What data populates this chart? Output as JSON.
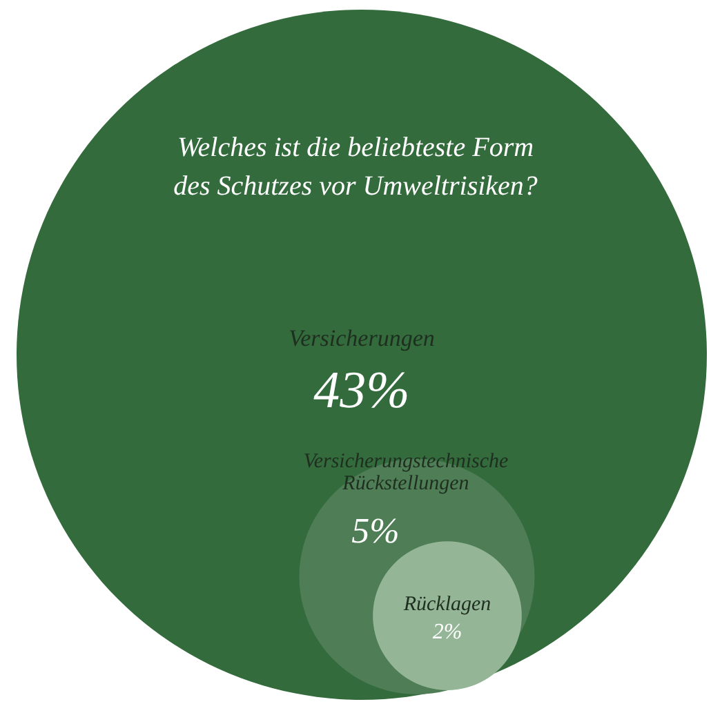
{
  "chart_data": {
    "type": "other",
    "title": "Welches ist die beliebteste Form des Schutzes vor Umweltrisiken?",
    "categories": [
      "Versicherungen",
      "Versicherungstechnische Rückstellungen",
      "Rücklagen"
    ],
    "values": [
      43,
      5,
      2
    ],
    "value_labels": [
      "43%",
      "5%",
      "2%"
    ],
    "colors": [
      "#336b3c",
      "#4f7e56",
      "#94b697"
    ]
  }
}
